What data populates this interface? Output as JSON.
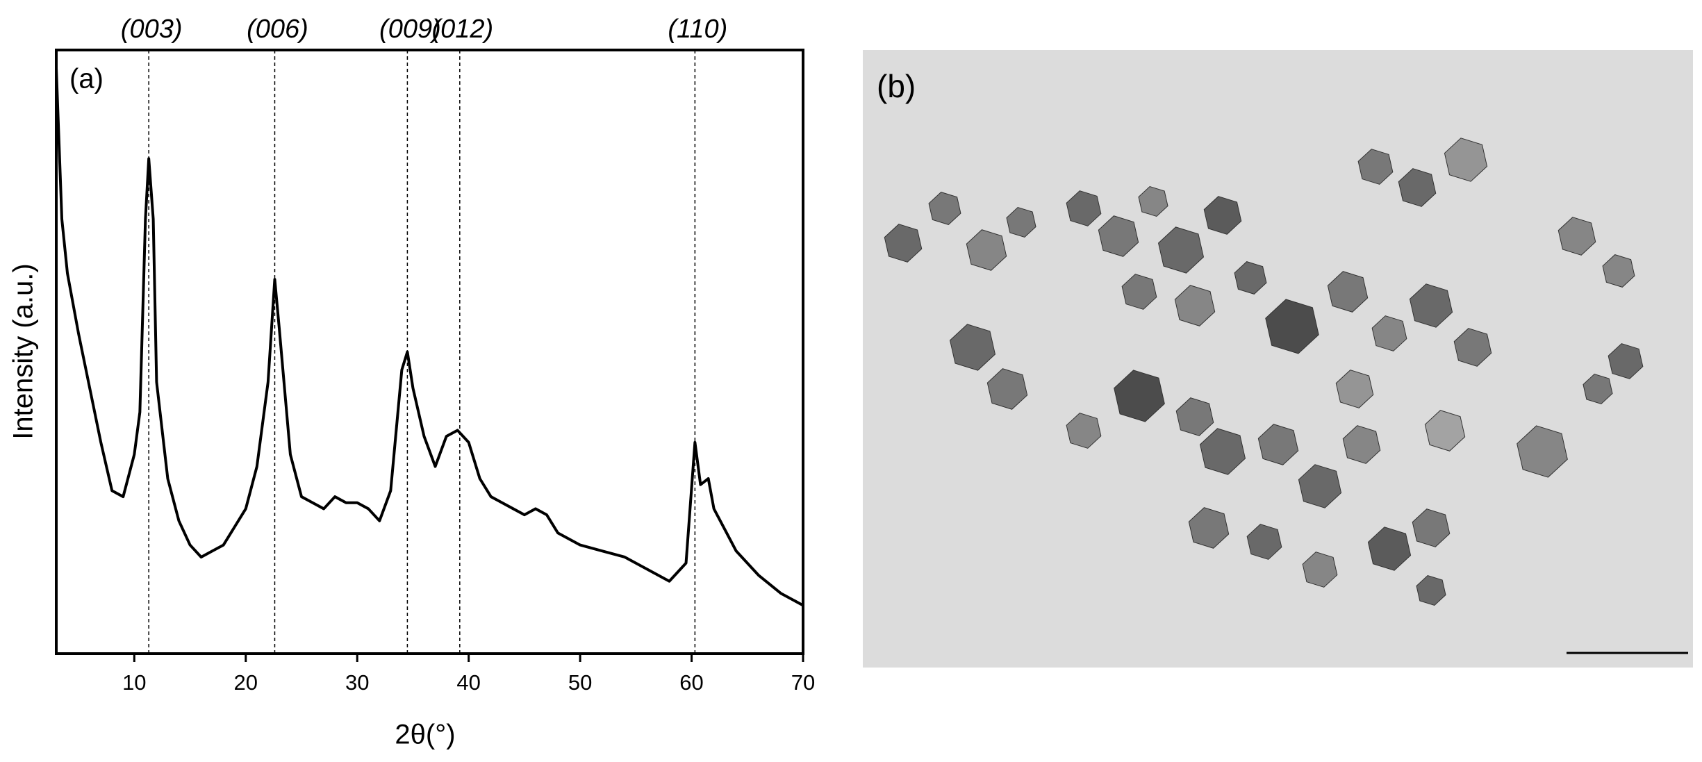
{
  "chart_data": {
    "type": "line",
    "x_label": "2θ(°)",
    "y_label": "Intensity (a.u.)",
    "panel_label": "(a)",
    "x": [
      3,
      3.5,
      4,
      5,
      6,
      7,
      8,
      9,
      10,
      10.5,
      11,
      11.3,
      11.7,
      12,
      13,
      14,
      15,
      16,
      17,
      18,
      19,
      20,
      21,
      22,
      22.6,
      23,
      24,
      25,
      26,
      27,
      28,
      29,
      30,
      31,
      32,
      33,
      34,
      34.5,
      35,
      36,
      37,
      38,
      39,
      40,
      41,
      42,
      43,
      44,
      45,
      46,
      47,
      48,
      50,
      52,
      54,
      56,
      58,
      59.5,
      60.3,
      60.8,
      61.5,
      62,
      64,
      66,
      68,
      70
    ],
    "series": [
      {
        "color": "#000000",
        "values": [
          97,
          72,
          63,
          53,
          44,
          35,
          27,
          26,
          33,
          40,
          72,
          82,
          72,
          45,
          29,
          22,
          18,
          16,
          17,
          18,
          21,
          24,
          31,
          45,
          62,
          54,
          33,
          26,
          25,
          24,
          26,
          25,
          25,
          24,
          22,
          27,
          47,
          50,
          44,
          36,
          31,
          36,
          37,
          35,
          29,
          26,
          25,
          24,
          23,
          24,
          23,
          20,
          18,
          17,
          16,
          14,
          12,
          15,
          35,
          28,
          29,
          24,
          17,
          13,
          10,
          8
        ]
      }
    ],
    "xlim": [
      3,
      70
    ],
    "ylim": [
      0,
      100
    ],
    "xticks": [
      10,
      20,
      30,
      40,
      50,
      60,
      70
    ],
    "peaks": [
      {
        "label": "(003)",
        "x": 11.3
      },
      {
        "label": "(006)",
        "x": 22.6
      },
      {
        "label": "(009)",
        "x": 34.5
      },
      {
        "label": "(012)",
        "x": 39.2
      },
      {
        "label": "(110)",
        "x": 60.3
      }
    ]
  },
  "image": {
    "panel_label": "(b)"
  }
}
